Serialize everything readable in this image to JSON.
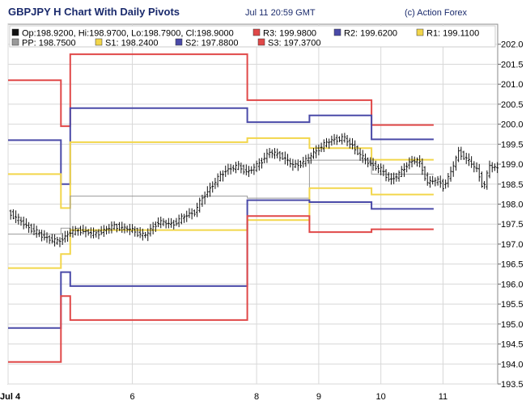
{
  "header": {
    "title": "GBPJPY H Chart With Daily Pivots",
    "timestamp": "Jul 11 20:59 GMT",
    "credit": "(c) Action Forex"
  },
  "legend": {
    "row1": [
      {
        "label": "Op:198.9200, Hi:198.9700, Lo:198.7900, Cl:198.9000",
        "color": "#111111"
      },
      {
        "label": "R3: 199.9800",
        "color": "#e04848"
      },
      {
        "label": "R2: 199.6200",
        "color": "#4a4aa8"
      },
      {
        "label": "R1: 199.1100",
        "color": "#f2d64b"
      }
    ],
    "row2": [
      {
        "label": "PP: 198.7500",
        "color": "#999999"
      },
      {
        "label": "S1: 198.2400",
        "color": "#f2d64b"
      },
      {
        "label": "S2: 197.8800",
        "color": "#4a4aa8"
      },
      {
        "label": "S3: 197.3700",
        "color": "#e04848"
      }
    ]
  },
  "chart_data": {
    "type": "line",
    "title": "GBPJPY H Chart With Daily Pivots",
    "ylim": [
      193.5,
      202.5
    ],
    "y_ticks": [
      "193.5",
      "194.0",
      "194.5",
      "195.0",
      "195.5",
      "196.0",
      "196.5",
      "197.0",
      "197.5",
      "198.0",
      "198.5",
      "199.0",
      "199.5",
      "200.0",
      "200.5",
      "201.0",
      "201.5",
      "202.0"
    ],
    "x_ticks": [
      {
        "label": "Jul 4",
        "day": 4.0
      },
      {
        "label": "6",
        "day": 6.0
      },
      {
        "label": "8",
        "day": 8.0
      },
      {
        "label": "9",
        "day": 9.0
      },
      {
        "label": "10",
        "day": 10.0
      },
      {
        "label": "11",
        "day": 11.0
      }
    ],
    "xlim": [
      4.0,
      11.88
    ],
    "grid": true,
    "session_breaks": [
      4.85,
      5.0,
      7.85,
      8.85,
      9.85,
      10.85,
      11.88
    ],
    "pivots": [
      {
        "name": "R3",
        "color": "#e04848",
        "values": [
          201.1,
          199.95,
          201.75,
          200.6,
          200.6,
          199.98
        ]
      },
      {
        "name": "R2",
        "color": "#4a4aa8",
        "values": [
          199.6,
          198.5,
          200.4,
          200.05,
          200.22,
          199.62
        ]
      },
      {
        "name": "R1",
        "color": "#f2d64b",
        "values": [
          198.75,
          197.9,
          199.55,
          199.65,
          199.4,
          199.11
        ]
      },
      {
        "name": "PP",
        "color": "#999999",
        "values": [
          197.25,
          197.4,
          198.2,
          198.15,
          199.1,
          198.75
        ]
      },
      {
        "name": "S1",
        "color": "#f2d64b",
        "values": [
          196.4,
          196.75,
          197.35,
          197.6,
          198.4,
          198.24
        ]
      },
      {
        "name": "S2",
        "color": "#4a4aa8",
        "values": [
          194.9,
          196.3,
          195.95,
          198.1,
          198.05,
          197.88
        ]
      },
      {
        "name": "S3",
        "color": "#e04848",
        "values": [
          194.05,
          195.7,
          195.1,
          197.7,
          197.3,
          197.37
        ]
      }
    ],
    "price_path": [
      [
        4.0,
        197.8
      ],
      [
        4.3,
        197.45
      ],
      [
        4.55,
        197.2
      ],
      [
        4.8,
        197.05
      ],
      [
        5.0,
        197.3
      ],
      [
        5.15,
        197.35
      ],
      [
        5.4,
        197.25
      ],
      [
        5.7,
        197.45
      ],
      [
        5.85,
        197.4
      ],
      [
        6.0,
        197.35
      ],
      [
        6.2,
        197.2
      ],
      [
        6.4,
        197.55
      ],
      [
        6.65,
        197.5
      ],
      [
        6.9,
        197.75
      ],
      [
        7.0,
        197.8
      ],
      [
        7.15,
        198.2
      ],
      [
        7.3,
        198.5
      ],
      [
        7.5,
        198.85
      ],
      [
        7.7,
        198.95
      ],
      [
        7.85,
        198.8
      ],
      [
        8.0,
        198.95
      ],
      [
        8.2,
        199.3
      ],
      [
        8.4,
        199.2
      ],
      [
        8.6,
        198.95
      ],
      [
        8.8,
        199.1
      ],
      [
        9.0,
        199.4
      ],
      [
        9.2,
        199.6
      ],
      [
        9.4,
        199.65
      ],
      [
        9.55,
        199.45
      ],
      [
        9.7,
        199.15
      ],
      [
        9.85,
        199.0
      ],
      [
        10.0,
        198.85
      ],
      [
        10.15,
        198.6
      ],
      [
        10.3,
        198.75
      ],
      [
        10.45,
        199.05
      ],
      [
        10.6,
        199.1
      ],
      [
        10.75,
        198.55
      ],
      [
        10.9,
        198.6
      ],
      [
        11.0,
        198.45
      ],
      [
        11.1,
        198.7
      ],
      [
        11.25,
        199.3
      ],
      [
        11.4,
        199.1
      ],
      [
        11.55,
        198.85
      ],
      [
        11.65,
        198.4
      ],
      [
        11.75,
        198.95
      ],
      [
        11.88,
        198.9
      ]
    ]
  }
}
